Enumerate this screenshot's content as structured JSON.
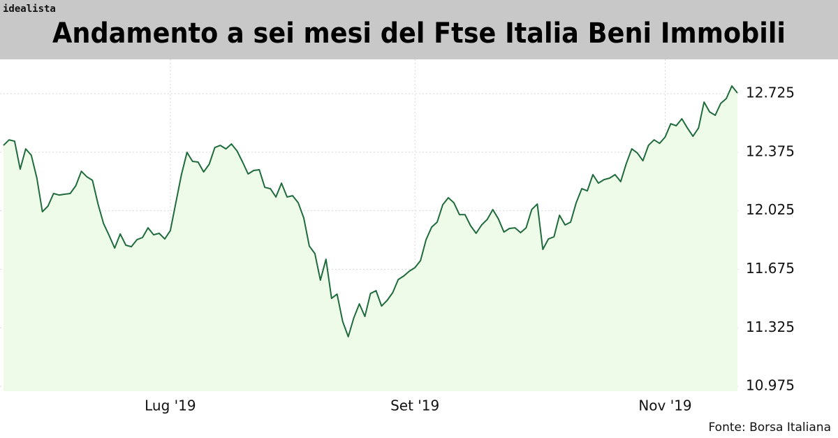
{
  "brand": "idealista",
  "source": "Fonte: Borsa Italiana",
  "chart_data": {
    "type": "area",
    "title": "Andamento a sei mesi del Ftse Italia Beni Immobili",
    "categories": [
      null,
      null,
      null,
      null,
      null,
      null,
      null,
      null,
      null,
      null,
      null,
      null,
      null,
      null,
      null,
      null,
      null,
      null,
      null,
      null,
      null,
      null,
      null,
      null,
      null,
      null,
      null,
      null,
      null,
      null,
      "Lug '19",
      null,
      null,
      null,
      null,
      null,
      null,
      null,
      null,
      null,
      null,
      null,
      null,
      null,
      null,
      null,
      null,
      null,
      null,
      null,
      null,
      null,
      null,
      null,
      null,
      null,
      null,
      null,
      null,
      null,
      null,
      null,
      null,
      null,
      null,
      null,
      null,
      null,
      null,
      null,
      null,
      null,
      null,
      null,
      "Set '19",
      null,
      null,
      null,
      null,
      null,
      null,
      null,
      null,
      null,
      null,
      null,
      null,
      null,
      null,
      null,
      null,
      null,
      null,
      null,
      null,
      null,
      null,
      null,
      null,
      null,
      null,
      null,
      null,
      null,
      null,
      null,
      null,
      null,
      null,
      null,
      null,
      null,
      null,
      null,
      null,
      null,
      null,
      null,
      null,
      "Nov '19",
      null,
      null,
      null,
      null,
      null,
      null,
      null,
      null,
      null,
      null,
      null,
      null,
      null
    ],
    "values": [
      12416,
      12449,
      12441,
      12274,
      12395,
      12357,
      12220,
      12019,
      12053,
      12128,
      12119,
      12124,
      12128,
      12174,
      12261,
      12228,
      12207,
      12065,
      11948,
      11877,
      11802,
      11886,
      11819,
      11810,
      11852,
      11865,
      11923,
      11881,
      11890,
      11856,
      11906,
      12073,
      12241,
      12374,
      12320,
      12316,
      12257,
      12303,
      12403,
      12416,
      12395,
      12424,
      12383,
      12316,
      12245,
      12266,
      12270,
      12165,
      12157,
      12107,
      12190,
      12107,
      12115,
      12073,
      11982,
      11814,
      11769,
      11610,
      11735,
      11501,
      11526,
      11363,
      11272,
      11384,
      11468,
      11393,
      11530,
      11547,
      11455,
      11489,
      11535,
      11614,
      11635,
      11664,
      11685,
      11727,
      11852,
      11927,
      11957,
      12061,
      12103,
      12073,
      12002,
      12002,
      11936,
      11890,
      11940,
      11973,
      12032,
      11977,
      11898,
      11919,
      11923,
      11894,
      11923,
      12032,
      12065,
      11794,
      11856,
      11869,
      11998,
      11940,
      11957,
      12073,
      12157,
      12144,
      12241,
      12190,
      12211,
      12220,
      12241,
      12199,
      12307,
      12395,
      12370,
      12324,
      12416,
      12449,
      12428,
      12466,
      12545,
      12533,
      12575,
      12520,
      12470,
      12520,
      12675,
      12616,
      12596,
      12667,
      12696,
      12771,
      12729
    ],
    "color": "#1f6b3d",
    "fill": "#eefbe8",
    "ylim": [
      10946,
      12930
    ],
    "yticks": [
      {
        "value": 10975,
        "label": "10.975"
      },
      {
        "value": 11325,
        "label": "11.325"
      },
      {
        "value": 11675,
        "label": "11.675"
      },
      {
        "value": 12025,
        "label": "12.025"
      },
      {
        "value": 12375,
        "label": "12.375"
      },
      {
        "value": 12725,
        "label": "12.725"
      }
    ],
    "grid": true
  }
}
